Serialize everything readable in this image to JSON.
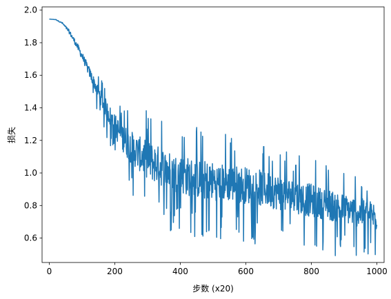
{
  "chart_data": {
    "type": "line",
    "xlabel": "步数 (x20)",
    "ylabel": "损失",
    "xlim": [
      -22,
      1022
    ],
    "ylim": [
      0.45,
      2.02
    ],
    "x_ticks": [
      0,
      200,
      400,
      600,
      800,
      1000
    ],
    "x_tick_labels": [
      "0",
      "200",
      "400",
      "600",
      "800",
      "1000"
    ],
    "y_ticks": [
      0.6,
      0.8,
      1.0,
      1.2,
      1.4,
      1.6,
      1.8,
      2.0
    ],
    "y_tick_labels": [
      "0.6",
      "0.8",
      "1.0",
      "1.2",
      "1.4",
      "1.6",
      "1.8",
      "2.0"
    ],
    "grid": false,
    "series": [
      {
        "color": "#1f77b4",
        "x": [
          0,
          20,
          40,
          60,
          80,
          100,
          120,
          140,
          160,
          180,
          200,
          220,
          240,
          260,
          280,
          300,
          320,
          340,
          360,
          380,
          400,
          420,
          440,
          460,
          480,
          500,
          520,
          540,
          560,
          580,
          600,
          620,
          640,
          660,
          680,
          700,
          720,
          740,
          760,
          780,
          800,
          820,
          840,
          860,
          880,
          900,
          920,
          940,
          960,
          980,
          1000
        ],
        "trend": [
          1.945,
          1.942,
          1.92,
          1.87,
          1.8,
          1.72,
          1.63,
          1.54,
          1.45,
          1.37,
          1.29,
          1.23,
          1.18,
          1.14,
          1.11,
          1.08,
          1.06,
          1.04,
          1.02,
          1.0,
          0.99,
          0.98,
          0.97,
          0.96,
          0.955,
          0.95,
          0.945,
          0.94,
          0.935,
          0.93,
          0.925,
          0.92,
          0.91,
          0.9,
          0.89,
          0.88,
          0.87,
          0.86,
          0.85,
          0.84,
          0.83,
          0.82,
          0.81,
          0.8,
          0.79,
          0.78,
          0.77,
          0.76,
          0.75,
          0.74,
          0.73
        ],
        "noise": [
          0,
          0.002,
          0.008,
          0.02,
          0.03,
          0.04,
          0.05,
          0.06,
          0.08,
          0.1,
          0.12,
          0.14,
          0.16,
          0.17,
          0.18,
          0.19,
          0.2,
          0.2,
          0.2,
          0.2,
          0.2,
          0.2,
          0.2,
          0.2,
          0.2,
          0.2,
          0.19,
          0.19,
          0.19,
          0.19,
          0.19,
          0.19,
          0.19,
          0.18,
          0.18,
          0.18,
          0.18,
          0.17,
          0.17,
          0.17,
          0.17,
          0.16,
          0.16,
          0.16,
          0.16,
          0.15,
          0.15,
          0.15,
          0.15,
          0.15,
          0.15
        ]
      }
    ]
  }
}
